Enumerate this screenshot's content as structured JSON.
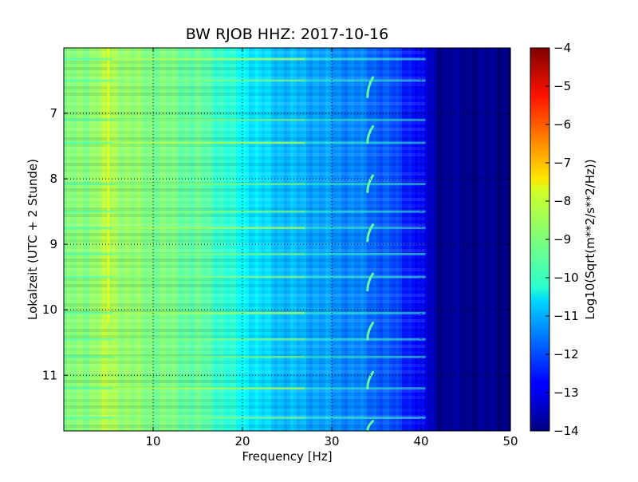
{
  "chart_data": {
    "type": "heatmap",
    "title": "BW RJOB HHZ: 2017-10-16",
    "xlabel": "Frequency [Hz]",
    "ylabel": "Lokalzeit (UTC + 2 Stunde)",
    "xlim": [
      0,
      50
    ],
    "ylim": [
      11.85,
      6.0
    ],
    "y_inverted": true,
    "x_ticks": [
      10,
      20,
      30,
      40,
      50
    ],
    "x_tick_labels": [
      "10",
      "20",
      "30",
      "40",
      "50"
    ],
    "y_ticks": [
      7,
      8,
      9,
      10,
      11
    ],
    "y_tick_labels": [
      "7",
      "8",
      "9",
      "10",
      "11"
    ],
    "grid": true,
    "colormap": "jet",
    "colorbar": {
      "label": "Log10(Sqrt(m**2/s**2/Hz))",
      "range": [
        -14,
        -4
      ],
      "ticks": [
        -4,
        -5,
        -6,
        -7,
        -8,
        -9,
        -10,
        -11,
        -12,
        -13,
        -14
      ],
      "tick_labels": [
        "−4",
        "−5",
        "−6",
        "−7",
        "−8",
        "−9",
        "−10",
        "−11",
        "−12",
        "−13",
        "−14"
      ]
    },
    "spectral_profile": {
      "frequency_hz": [
        0,
        1,
        3,
        5,
        8,
        12,
        16,
        18,
        20,
        22,
        25,
        28,
        30,
        33,
        36,
        38,
        40,
        41,
        42,
        50
      ],
      "log10_amplitude": [
        -9.1,
        -9.0,
        -8.8,
        -8.5,
        -8.9,
        -9.1,
        -9.4,
        -9.8,
        -10.2,
        -10.6,
        -10.9,
        -11.1,
        -11.3,
        -11.5,
        -11.9,
        -12.3,
        -12.8,
        -13.3,
        -13.8,
        -13.9
      ]
    },
    "persistent_line_hz": 5.0,
    "broadband_event_hours": [
      6.17,
      6.5,
      7.1,
      7.45,
      8.08,
      8.5,
      8.75,
      9.15,
      9.5,
      10.05,
      10.45,
      10.72,
      11.2,
      11.65
    ],
    "drifting_tone": {
      "frequency_range_hz": [
        34.0,
        34.6
      ],
      "segments_hours": [
        [
          6.45,
          6.75
        ],
        [
          7.2,
          7.45
        ],
        [
          7.95,
          8.2
        ],
        [
          8.7,
          8.95
        ],
        [
          9.45,
          9.7
        ],
        [
          10.2,
          10.45
        ],
        [
          10.95,
          11.2
        ],
        [
          11.7,
          11.85
        ]
      ]
    }
  }
}
